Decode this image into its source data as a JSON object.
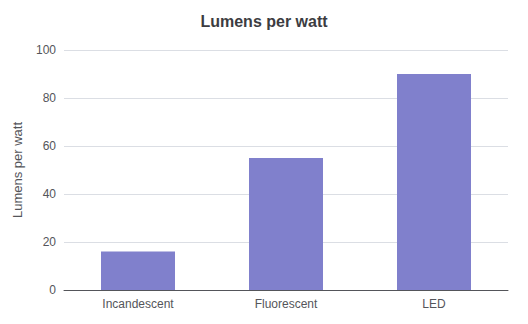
{
  "chart_data": {
    "type": "bar",
    "title": "Lumens per watt",
    "ylabel": "Lumens per watt",
    "categories": [
      "Incandescent",
      "Fluorescent",
      "LED"
    ],
    "values": [
      16,
      55,
      90
    ],
    "color": "#8080cc",
    "ylim": [
      0,
      100
    ],
    "yticks": [
      0,
      20,
      40,
      60,
      80,
      100
    ],
    "grid": true
  }
}
